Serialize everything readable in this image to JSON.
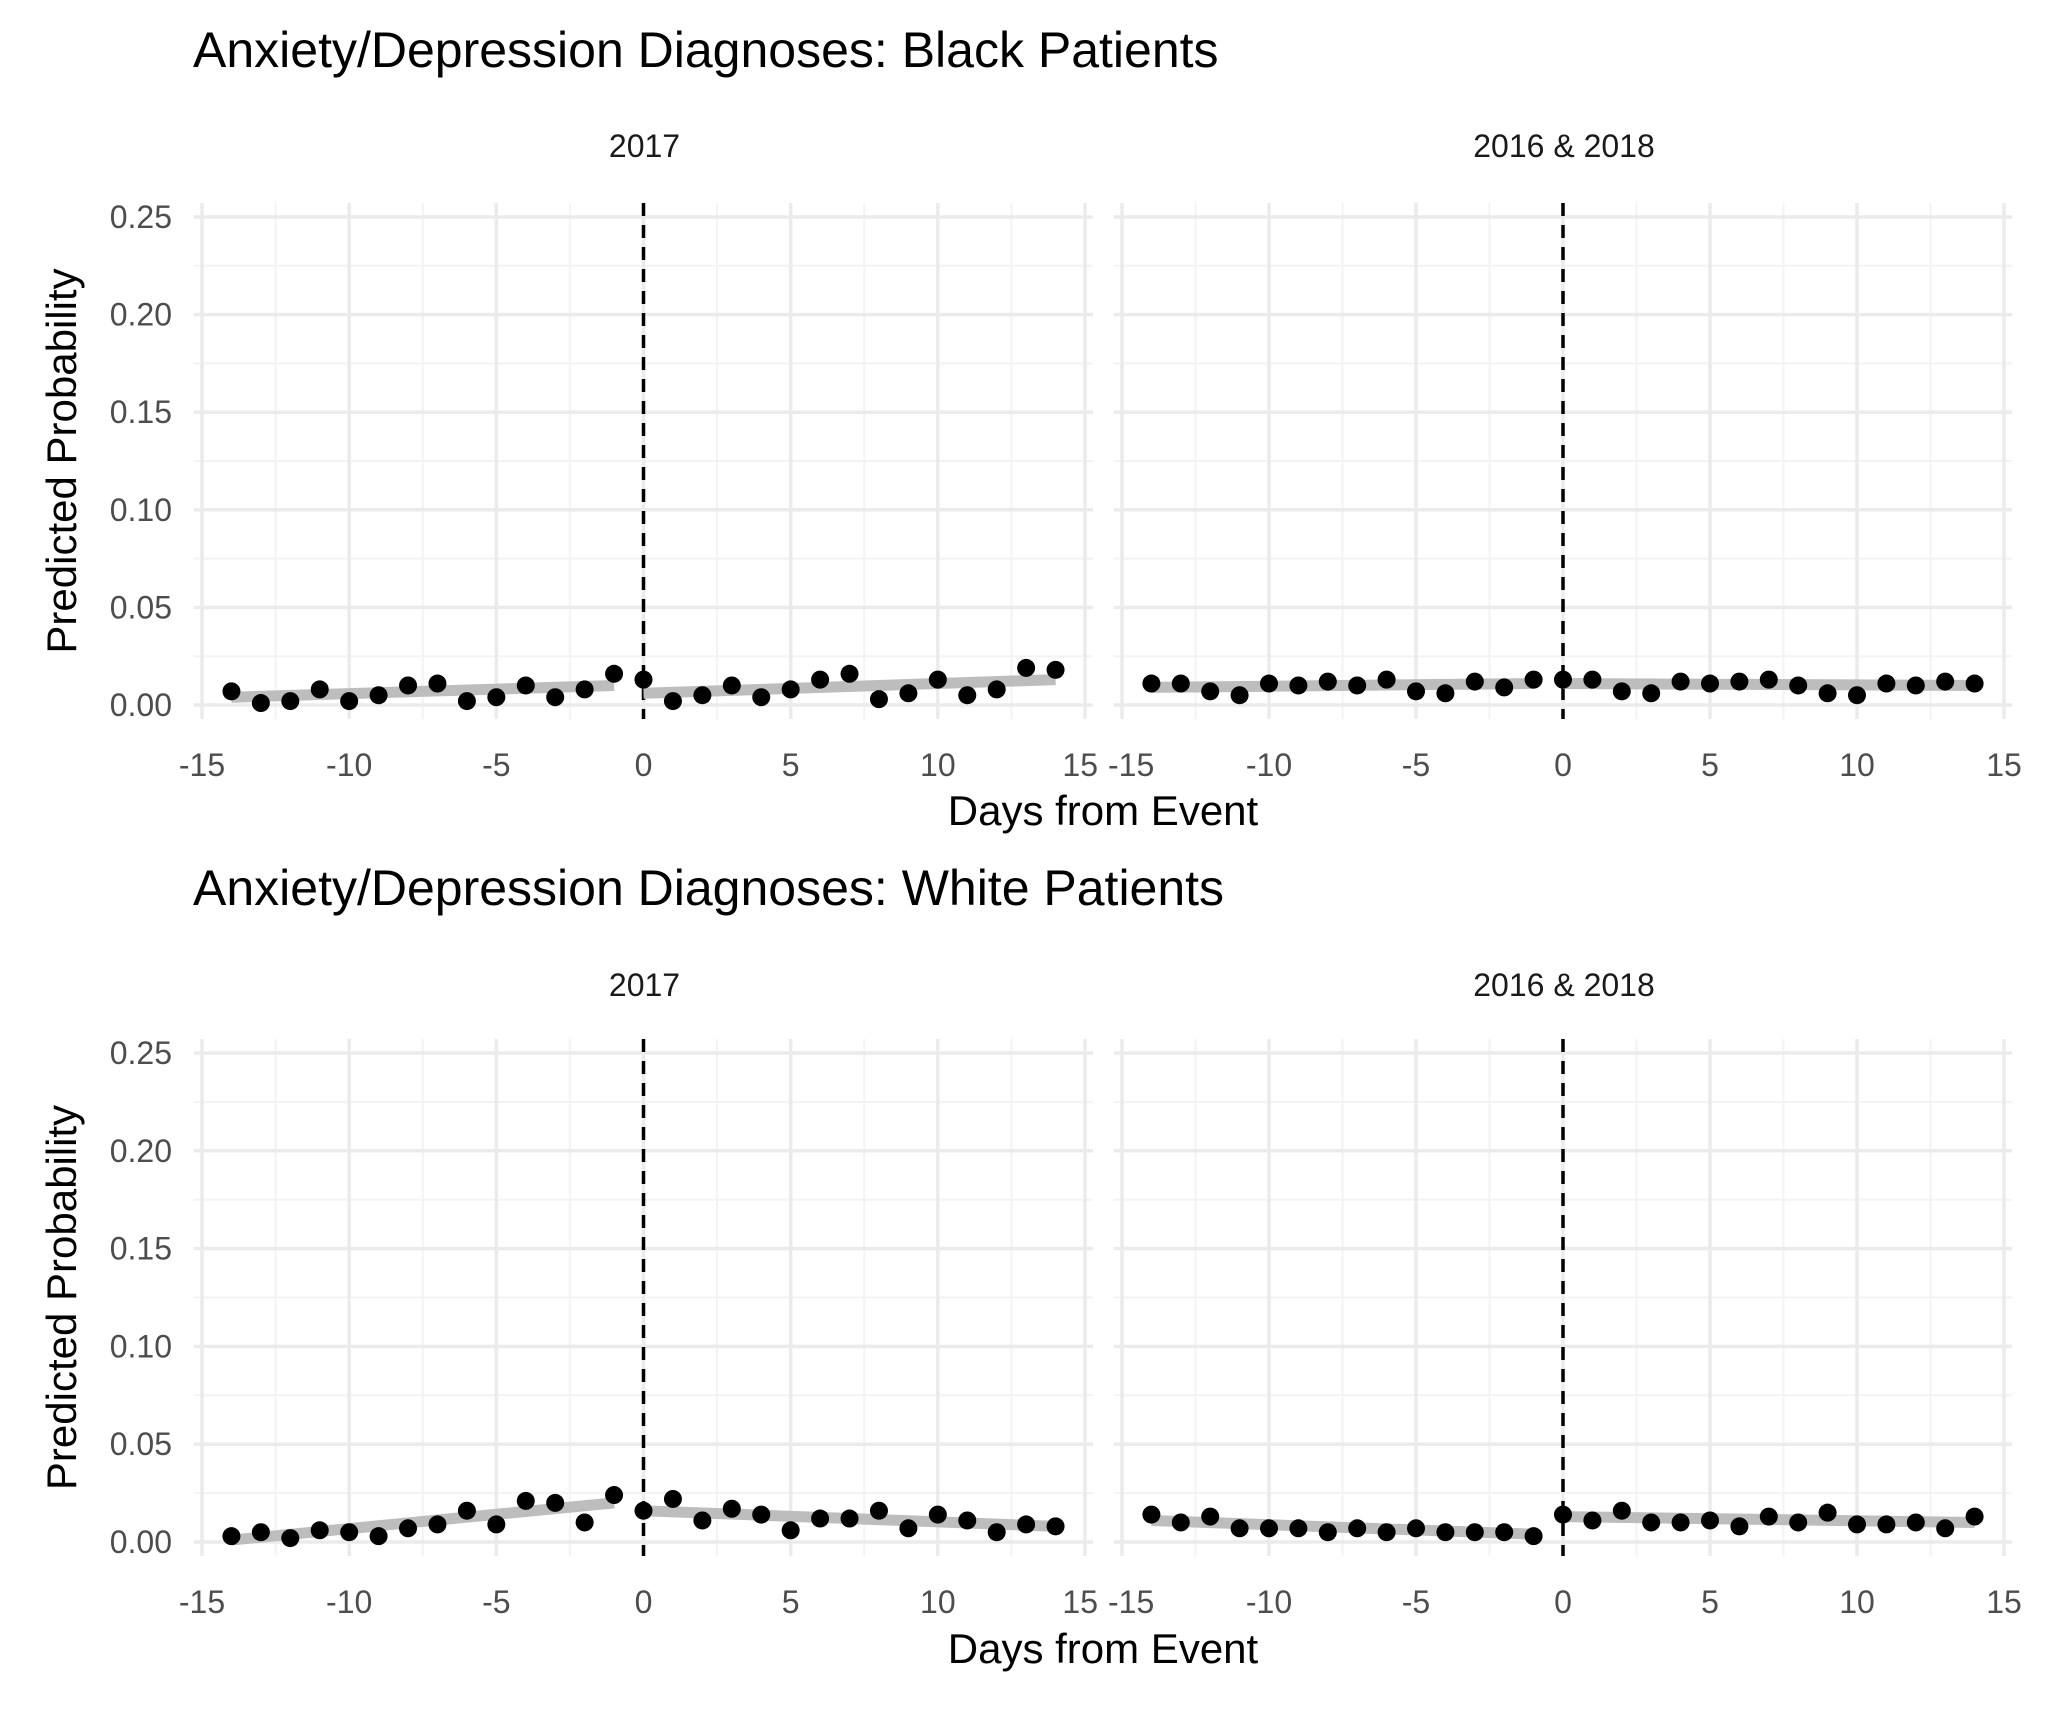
{
  "chart_data": [
    {
      "type": "scatter",
      "title": "Anxiety/Depression Diagnoses: Black Patients",
      "xlabel": "Days from Event",
      "ylabel": "Predicted Probability",
      "xlim": [
        -15,
        15
      ],
      "ylim": [
        0,
        0.25
      ],
      "x_ticks": [
        "-15",
        "-10",
        "-5",
        "0",
        "5",
        "10",
        "15"
      ],
      "y_ticks": [
        "0.00",
        "0.05",
        "0.10",
        "0.15",
        "0.20",
        "0.25"
      ],
      "event_line_x": 0,
      "grid": true,
      "fit_color": "#bdbdbd",
      "point_color": "#000000",
      "panels": [
        {
          "strip": "2017",
          "x": [
            -14,
            -13,
            -12,
            -11,
            -10,
            -9,
            -8,
            -7,
            -6,
            -5,
            -4,
            -3,
            -2,
            -1,
            0,
            1,
            2,
            3,
            4,
            5,
            6,
            7,
            8,
            9,
            10,
            11,
            12,
            13,
            14
          ],
          "y": [
            0.007,
            0.001,
            0.002,
            0.008,
            0.002,
            0.005,
            0.01,
            0.011,
            0.002,
            0.004,
            0.01,
            0.004,
            0.008,
            0.016,
            0.013,
            0.002,
            0.005,
            0.01,
            0.004,
            0.008,
            0.013,
            0.016,
            0.003,
            0.006,
            0.013,
            0.005,
            0.008,
            0.019,
            0.018
          ],
          "fit": [
            {
              "x": [
                -14,
                -1
              ],
              "y": [
                0.004,
                0.01
              ]
            },
            {
              "x": [
                0,
                14
              ],
              "y": [
                0.006,
                0.013
              ]
            }
          ]
        },
        {
          "strip": "2016 & 2018",
          "x": [
            -14,
            -13,
            -12,
            -11,
            -10,
            -9,
            -8,
            -7,
            -6,
            -5,
            -4,
            -3,
            -2,
            -1,
            0,
            1,
            2,
            3,
            4,
            5,
            6,
            7,
            8,
            9,
            10,
            11,
            12,
            13,
            14
          ],
          "y": [
            0.011,
            0.011,
            0.007,
            0.005,
            0.011,
            0.01,
            0.012,
            0.01,
            0.013,
            0.007,
            0.006,
            0.012,
            0.009,
            0.013,
            0.013,
            0.013,
            0.007,
            0.006,
            0.012,
            0.011,
            0.012,
            0.013,
            0.01,
            0.006,
            0.005,
            0.011,
            0.01,
            0.012,
            0.011
          ],
          "fit": [
            {
              "x": [
                -14,
                -1
              ],
              "y": [
                0.009,
                0.011
              ]
            },
            {
              "x": [
                0,
                14
              ],
              "y": [
                0.011,
                0.01
              ]
            }
          ]
        }
      ]
    },
    {
      "type": "scatter",
      "title": "Anxiety/Depression Diagnoses: White Patients",
      "xlabel": "Days from Event",
      "ylabel": "Predicted Probability",
      "xlim": [
        -15,
        15
      ],
      "ylim": [
        0,
        0.25
      ],
      "x_ticks": [
        "-15",
        "-10",
        "-5",
        "0",
        "5",
        "10",
        "15"
      ],
      "y_ticks": [
        "0.00",
        "0.05",
        "0.10",
        "0.15",
        "0.20",
        "0.25"
      ],
      "event_line_x": 0,
      "grid": true,
      "fit_color": "#bdbdbd",
      "point_color": "#000000",
      "panels": [
        {
          "strip": "2017",
          "x": [
            -14,
            -13,
            -12,
            -11,
            -10,
            -9,
            -8,
            -7,
            -6,
            -5,
            -4,
            -3,
            -2,
            -1,
            0,
            1,
            2,
            3,
            4,
            5,
            6,
            7,
            8,
            9,
            10,
            11,
            12,
            13,
            14
          ],
          "y": [
            0.003,
            0.005,
            0.002,
            0.006,
            0.005,
            0.003,
            0.007,
            0.009,
            0.016,
            0.009,
            0.021,
            0.02,
            0.01,
            0.024,
            0.016,
            0.022,
            0.011,
            0.017,
            0.014,
            0.006,
            0.012,
            0.012,
            0.016,
            0.007,
            0.014,
            0.011,
            0.005,
            0.009,
            0.008
          ],
          "fit": [
            {
              "x": [
                -14,
                -1
              ],
              "y": [
                0.001,
                0.02
              ]
            },
            {
              "x": [
                0,
                14
              ],
              "y": [
                0.016,
                0.008
              ]
            }
          ]
        },
        {
          "strip": "2016 & 2018",
          "x": [
            -14,
            -13,
            -12,
            -11,
            -10,
            -9,
            -8,
            -7,
            -6,
            -5,
            -4,
            -3,
            -2,
            -1,
            0,
            1,
            2,
            3,
            4,
            5,
            6,
            7,
            8,
            9,
            10,
            11,
            12,
            13,
            14
          ],
          "y": [
            0.014,
            0.01,
            0.013,
            0.007,
            0.007,
            0.007,
            0.005,
            0.007,
            0.005,
            0.007,
            0.005,
            0.005,
            0.005,
            0.003,
            0.014,
            0.011,
            0.016,
            0.01,
            0.01,
            0.011,
            0.008,
            0.013,
            0.01,
            0.015,
            0.009,
            0.009,
            0.01,
            0.007,
            0.013
          ],
          "fit": [
            {
              "x": [
                -14,
                -1
              ],
              "y": [
                0.011,
                0.004
              ]
            },
            {
              "x": [
                0,
                14
              ],
              "y": [
                0.013,
                0.01
              ]
            }
          ]
        }
      ]
    }
  ]
}
